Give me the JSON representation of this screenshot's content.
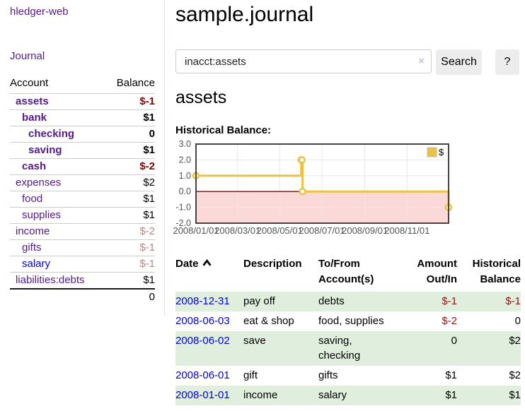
{
  "app": {
    "brand": "hledger-web",
    "nav_journal": "Journal"
  },
  "sidebar": {
    "col_account": "Account",
    "col_balance": "Balance",
    "accounts": [
      {
        "name": "assets",
        "balance": "$-1"
      },
      {
        "name": "bank",
        "balance": "$1"
      },
      {
        "name": "checking",
        "balance": "0"
      },
      {
        "name": "saving",
        "balance": "$1"
      },
      {
        "name": "cash",
        "balance": "$-2"
      },
      {
        "name": "expenses",
        "balance": "$2"
      },
      {
        "name": "food",
        "balance": "$1"
      },
      {
        "name": "supplies",
        "balance": "$1"
      },
      {
        "name": "income",
        "balance": "$-2"
      },
      {
        "name": "gifts",
        "balance": "$-1"
      },
      {
        "name": "salary",
        "balance": "$-1"
      },
      {
        "name": "liabilities:debts",
        "balance": "$1"
      }
    ],
    "total": "0"
  },
  "main": {
    "title": "sample.journal",
    "search": {
      "query": "inacct:assets",
      "clear_icon": "×",
      "button": "Search",
      "help_button": "?"
    },
    "heading": "assets",
    "chart_label": "Historical Balance:",
    "register": {
      "headers": {
        "date": "Date",
        "description": "Description",
        "accounts": "To/From Account(s)",
        "amount": "Amount Out/In",
        "balance": "Historical Balance"
      },
      "rows": [
        {
          "date": "2008-12-31",
          "description": "pay off",
          "accounts": "debts",
          "amount": "$-1",
          "balance": "$-1"
        },
        {
          "date": "2008-06-03",
          "description": "eat & shop",
          "accounts": "food, supplies",
          "amount": "$-2",
          "balance": "0"
        },
        {
          "date": "2008-06-02",
          "description": "save",
          "accounts": "saving, checking",
          "amount": "0",
          "balance": "$2"
        },
        {
          "date": "2008-06-01",
          "description": "gift",
          "accounts": "gifts",
          "amount": "$1",
          "balance": "$2"
        },
        {
          "date": "2008-01-01",
          "description": "income",
          "accounts": "salary",
          "amount": "$1",
          "balance": "$1"
        }
      ]
    }
  },
  "chart_data": {
    "type": "line",
    "style": "step",
    "title": "Historical Balance:",
    "series": [
      {
        "name": "$",
        "color": "#edc240",
        "points": [
          [
            "2008-01-01",
            1
          ],
          [
            "2008-06-01",
            2
          ],
          [
            "2008-06-02",
            2
          ],
          [
            "2008-06-03",
            0
          ],
          [
            "2008-12-31",
            -1
          ]
        ]
      }
    ],
    "x_range": [
      "2008-01-01",
      "2008-12-31"
    ],
    "x_ticks": [
      "2008/01/01",
      "2008/03/01",
      "2008/05/01",
      "2008/07/01",
      "2008/09/01",
      "2008/11/01"
    ],
    "y_ticks": [
      "3.0",
      "2.0",
      "1.0",
      "0.0",
      "-1.0",
      "-2.0"
    ],
    "ylim": [
      -2,
      3
    ],
    "grid": true,
    "legend": {
      "label": "$",
      "position": "top-right"
    },
    "negative_region_color": "#fbd9d9",
    "zero_line_color": "#8b0000",
    "border_color": "#444444",
    "grid_color": "#e7e7e7",
    "tick_label_color": "#545454"
  },
  "colors": {
    "visited_link_purple": "#551a8b",
    "link_blue": "#0000e8",
    "negative_strong": "#8b0000",
    "negative_dim": "#c08484",
    "row_green": "#e0eedd",
    "button_gray": "#ececec"
  }
}
